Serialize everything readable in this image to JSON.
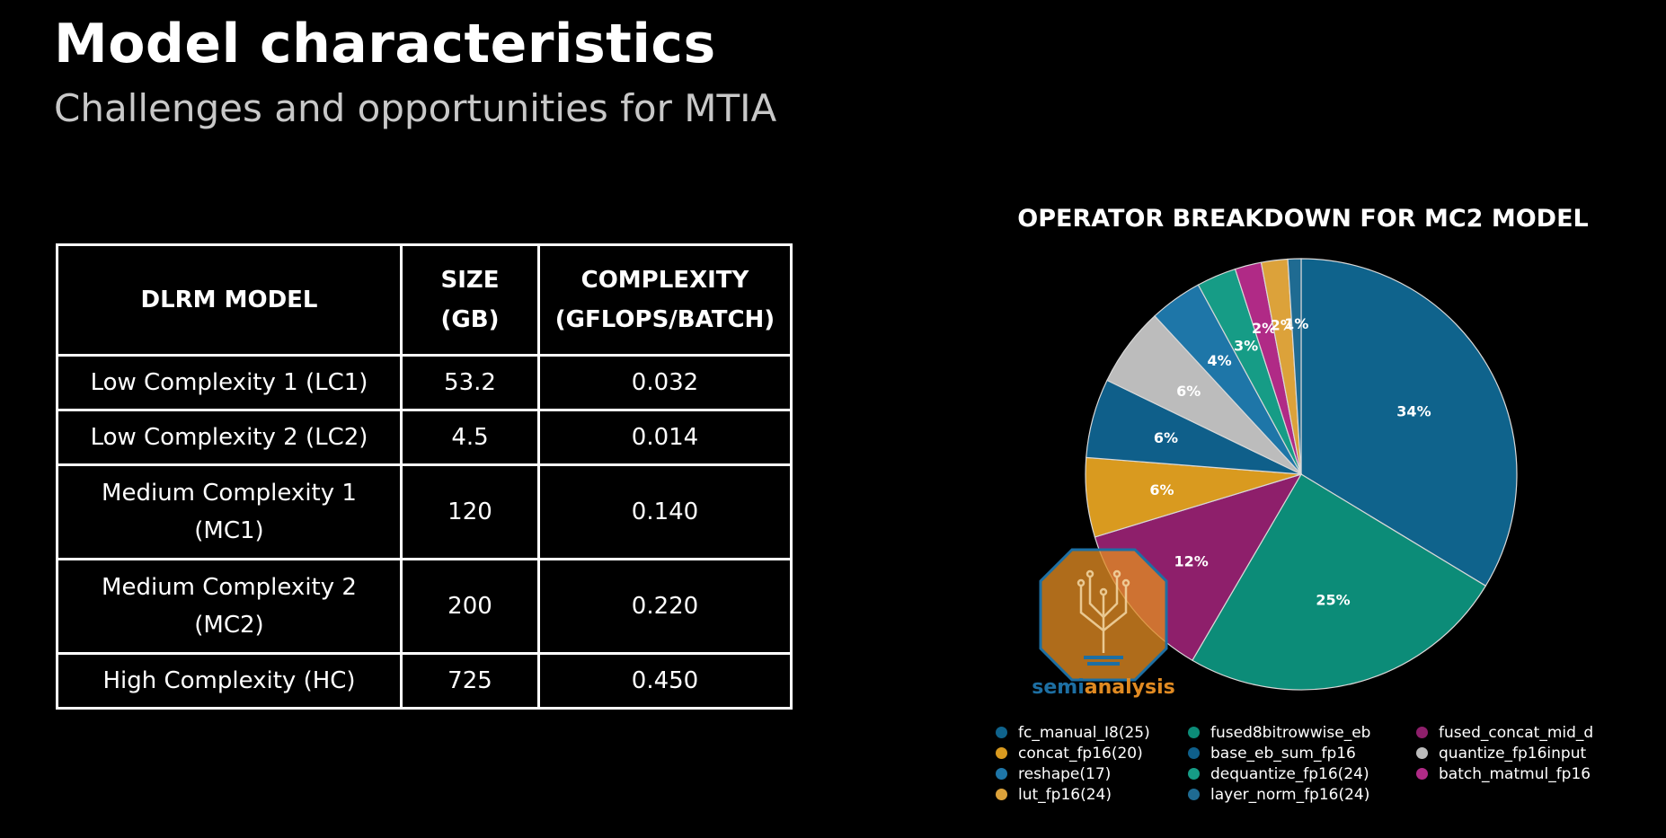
{
  "slide": {
    "title": "Model characteristics",
    "subtitle": "Challenges and opportunities for MTIA"
  },
  "table": {
    "headers": [
      "DLRM MODEL",
      "SIZE\n(GB)",
      "COMPLEXITY\n(GFLOPS/BATCH)"
    ],
    "rows": [
      [
        "Low Complexity 1 (LC1)",
        "53.2",
        "0.032"
      ],
      [
        "Low Complexity 2 (LC2)",
        "4.5",
        "0.014"
      ],
      [
        "Medium Complexity 1\n(MC1)",
        "120",
        "0.140"
      ],
      [
        "Medium Complexity 2\n(MC2)",
        "200",
        "0.220"
      ],
      [
        "High Complexity (HC)",
        "725",
        "0.450"
      ]
    ]
  },
  "logo": {
    "text_a": "semi",
    "text_b": "analysis"
  },
  "chart_data": {
    "type": "pie",
    "title": "OPERATOR BREAKDOWN FOR MC2 MODEL",
    "legend_position": "bottom",
    "slices": [
      {
        "name": "fc_manual_I8(25)",
        "value": 34,
        "label": "34%",
        "color": "#0f638c"
      },
      {
        "name": "fused8bitrowwise_eb",
        "value": 25,
        "label": "25%",
        "color": "#0c8c78"
      },
      {
        "name": "fused_concat_mid_d",
        "value": 12,
        "label": "12%",
        "color": "#8e1f6b"
      },
      {
        "name": "concat_fp16(20)",
        "value": 6,
        "label": "6%",
        "color": "#d99a1f"
      },
      {
        "name": "base_eb_sum_fp16",
        "value": 6,
        "label": "6%",
        "color": "#0f5f8a"
      },
      {
        "name": "quantize_fp16input",
        "value": 6,
        "label": "6%",
        "color": "#bcbcbc"
      },
      {
        "name": "reshape(17)",
        "value": 4,
        "label": "4%",
        "color": "#1e76a8"
      },
      {
        "name": "dequantize_fp16(24)",
        "value": 3,
        "label": "3%",
        "color": "#169c86"
      },
      {
        "name": "batch_matmul_fp16",
        "value": 2,
        "label": "2%",
        "color": "#b02a86"
      },
      {
        "name": "lut_fp16(24)",
        "value": 2,
        "label": "2%",
        "color": "#dca23a"
      },
      {
        "name": "layer_norm_fp16(24)",
        "value": 1,
        "label": "1%",
        "color": "#1f6b92"
      }
    ],
    "legend_columns": [
      [
        "fc_manual_I8(25)",
        "concat_fp16(20)",
        "reshape(17)",
        "lut_fp16(24)"
      ],
      [
        "fused8bitrowwise_eb",
        "base_eb_sum_fp16",
        "dequantize_fp16(24)",
        "layer_norm_fp16(24)"
      ],
      [
        "fused_concat_mid_d",
        "quantize_fp16input",
        "batch_matmul_fp16"
      ]
    ]
  }
}
